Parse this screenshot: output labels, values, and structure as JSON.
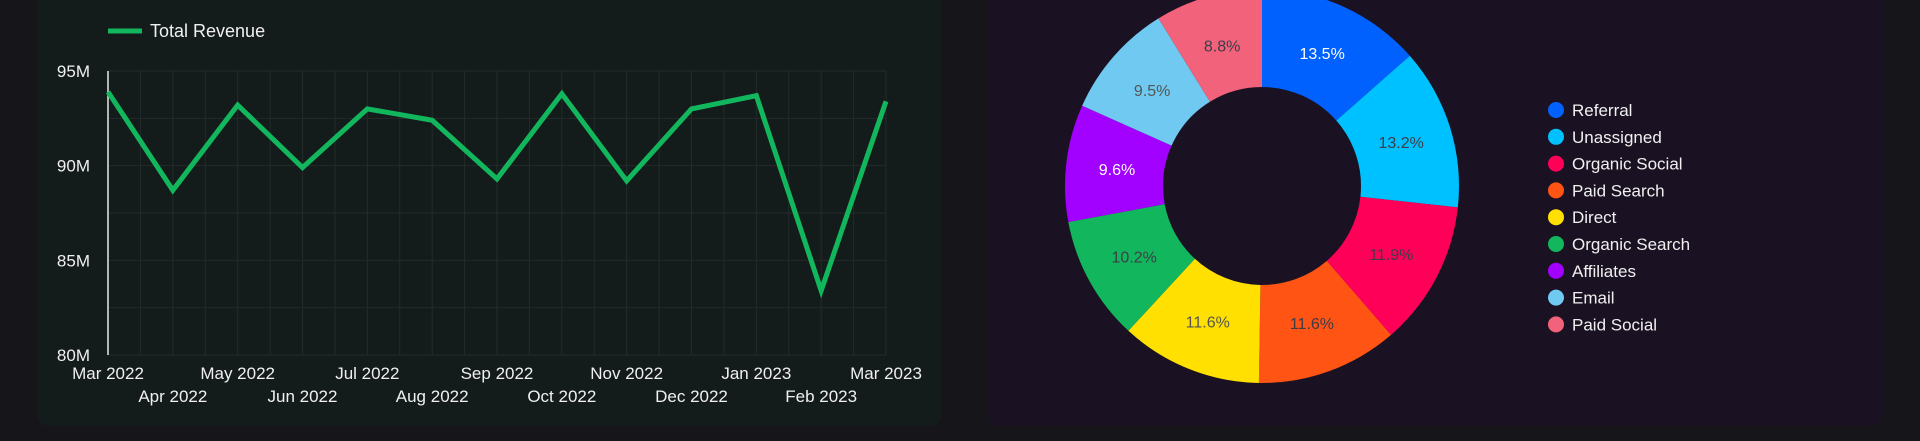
{
  "colors": {
    "line": "#12b75d",
    "grid": "#232b2b",
    "axis": "#e8e8ea",
    "tick_text": "#f0f0f0"
  },
  "chart_data": [
    {
      "type": "line",
      "legend_position": "top-left",
      "grid": true,
      "x": [
        "Mar 2022",
        "Apr 2022",
        "May 2022",
        "Jun 2022",
        "Jul 2022",
        "Aug 2022",
        "Sep 2022",
        "Oct 2022",
        "Nov 2022",
        "Dec 2022",
        "Jan 2023",
        "Feb 2023",
        "Mar 2023"
      ],
      "series": [
        {
          "name": "Total Revenue",
          "color": "#12b75d",
          "values": [
            93.9,
            88.7,
            93.2,
            89.9,
            93.0,
            92.4,
            89.3,
            93.8,
            89.2,
            93.0,
            93.7,
            83.4,
            93.4
          ]
        }
      ],
      "ylim": [
        80,
        95
      ],
      "yticks": [
        80,
        85,
        90,
        95
      ],
      "ytick_labels": [
        "80M",
        "85M",
        "90M",
        "95M"
      ]
    },
    {
      "type": "pie",
      "donut": true,
      "legend_position": "right",
      "slices": [
        {
          "label": "Referral",
          "value": 13.5,
          "text": "13.5%",
          "color": "#0061ff",
          "label_color": "#ffffff"
        },
        {
          "label": "Unassigned",
          "value": 13.2,
          "text": "13.2%",
          "color": "#00c1ff",
          "label_color": "#3d3d4a"
        },
        {
          "label": "Organic Social",
          "value": 11.9,
          "text": "11.9%",
          "color": "#ff0058",
          "label_color": "#3d3d4a"
        },
        {
          "label": "Paid Search",
          "value": 11.6,
          "text": "11.6%",
          "color": "#ff5414",
          "label_color": "#3d3d4a"
        },
        {
          "label": "Direct",
          "value": 11.6,
          "text": "11.6%",
          "color": "#ffe000",
          "label_color": "#555555"
        },
        {
          "label": "Organic Search",
          "value": 10.2,
          "text": "10.2%",
          "color": "#12b75d",
          "label_color": "#3d3d4a"
        },
        {
          "label": "Affiliates",
          "value": 9.6,
          "text": "9.6%",
          "color": "#a200ff",
          "label_color": "#ffffff"
        },
        {
          "label": "Email",
          "value": 9.5,
          "text": "9.5%",
          "color": "#6fc9f0",
          "label_color": "#555555"
        },
        {
          "label": "Paid Social",
          "value": 8.8,
          "text": "8.8%",
          "color": "#f2627a",
          "label_color": "#3d3d4a"
        }
      ]
    }
  ]
}
